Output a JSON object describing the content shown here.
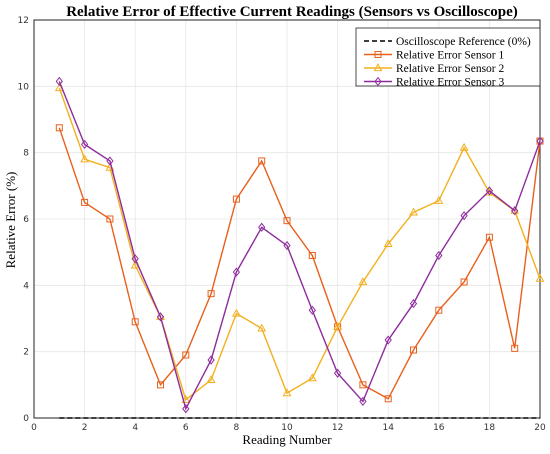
{
  "chart_data": {
    "type": "line",
    "title": "Relative Error of Effective Current Readings (Sensors vs Oscilloscope)",
    "xlabel": "Reading Number",
    "ylabel": "Relative Error (%)",
    "xlim": [
      0,
      20
    ],
    "ylim": [
      0,
      12
    ],
    "xticks": [
      0,
      2,
      4,
      6,
      8,
      10,
      12,
      14,
      16,
      18,
      20
    ],
    "yticks": [
      0,
      2,
      4,
      6,
      8,
      10,
      12
    ],
    "grid": true,
    "legend_position": "top-right",
    "x": [
      1,
      2,
      3,
      4,
      5,
      6,
      7,
      8,
      9,
      10,
      11,
      12,
      13,
      14,
      15,
      16,
      17,
      18,
      19,
      20
    ],
    "reference": {
      "name": "Oscilloscope Reference (0%)",
      "value": 0,
      "color": "#000000",
      "style": "dashed"
    },
    "series": [
      {
        "name": "Relative Error Sensor 1",
        "color": "#e8601c",
        "marker": "square",
        "values": [
          8.75,
          6.5,
          6.0,
          2.9,
          1.0,
          1.9,
          3.75,
          6.6,
          7.75,
          5.95,
          4.9,
          2.75,
          1.0,
          0.58,
          2.05,
          3.25,
          4.1,
          5.45,
          2.1,
          8.35
        ]
      },
      {
        "name": "Relative Error Sensor 2",
        "color": "#f2b01e",
        "marker": "triangle",
        "values": [
          9.95,
          7.8,
          7.55,
          4.6,
          3.05,
          0.55,
          1.15,
          3.15,
          2.7,
          0.75,
          1.2,
          2.75,
          4.1,
          5.25,
          6.2,
          6.55,
          8.15,
          6.8,
          6.25,
          4.2
        ]
      },
      {
        "name": "Relative Error Sensor 3",
        "color": "#8e2c9e",
        "marker": "diamond",
        "values": [
          10.15,
          8.25,
          7.75,
          4.8,
          3.05,
          0.28,
          1.75,
          4.4,
          5.75,
          5.2,
          3.25,
          1.35,
          0.5,
          2.35,
          3.45,
          4.9,
          6.1,
          6.85,
          6.25,
          8.35
        ]
      }
    ]
  }
}
